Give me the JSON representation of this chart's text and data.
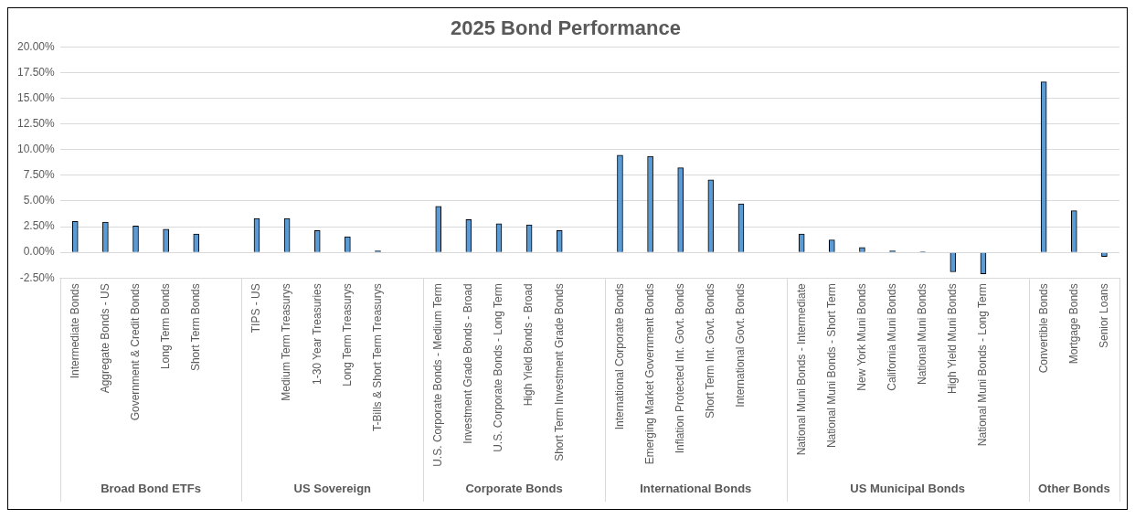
{
  "chart_data": {
    "type": "bar",
    "title": "2025 Bond Performance",
    "categories": [
      "Intermediate Bonds",
      "Aggregate Bonds - US",
      "Government & Credit Bonds",
      "Long Term Bonds",
      "Short Term Bonds",
      null,
      "TIPS - US",
      "Medium Term Treasurys",
      "1-30 Year Treasuries",
      "Long Term Treasurys",
      "T-Bills & Short Term Treasurys",
      null,
      "U.S. Corporate Bonds - Medium Term",
      "Investment Grade Bonds - Broad",
      "U.S. Corporate Bonds - Long Term",
      "High Yield Bonds - Broad",
      "Short Term Investment Grade Bonds",
      null,
      "International Corporate Bonds",
      "Emerging Market Government Bonds",
      "Inflation Protected Int. Govt. Bonds",
      "Short Term Int. Govt. Bonds",
      "International Govt. Bonds",
      null,
      "National Muni Bonds - Intermediate",
      "National Muni Bonds - Short Term",
      "New York Muni Bonds",
      "California Muni Bonds",
      "National Muni Bonds",
      "High Yield Muni Bonds",
      "National Muni Bonds - Long Term",
      null,
      "Convertible Bonds",
      "Mortgage Bonds",
      "Senior Loans"
    ],
    "values": [
      3.02,
      2.95,
      2.57,
      2.26,
      1.78,
      null,
      3.29,
      3.29,
      2.13,
      1.51,
      0.14,
      null,
      4.49,
      3.19,
      2.78,
      2.67,
      2.13,
      null,
      9.46,
      9.36,
      8.23,
      7.06,
      4.73,
      null,
      1.78,
      1.2,
      0.48,
      0.14,
      0.05,
      -1.9,
      -2.1,
      null,
      16.6,
      4.05,
      -0.4
    ],
    "color": "#5b9bd5",
    "ylim": [
      -2.5,
      20
    ],
    "yticks": [
      {
        "value": -2.5,
        "label": "-2.50%"
      },
      {
        "value": 0,
        "label": "0.00%"
      },
      {
        "value": 2.5,
        "label": "2.50%"
      },
      {
        "value": 5,
        "label": "5.00%"
      },
      {
        "value": 7.5,
        "label": "7.50%"
      },
      {
        "value": 10,
        "label": "10.00%"
      },
      {
        "value": 12.5,
        "label": "12.50%"
      },
      {
        "value": 15,
        "label": "15.00%"
      },
      {
        "value": 17.5,
        "label": "17.50%"
      },
      {
        "value": 20,
        "label": "20.00%"
      }
    ],
    "grid": "y",
    "legend": false,
    "annotations": [
      "Broad Bond ETFs",
      "US Sovereign",
      "Corporate Bonds",
      "International Bonds",
      "US Municipal Bonds",
      "Other Bonds"
    ]
  }
}
